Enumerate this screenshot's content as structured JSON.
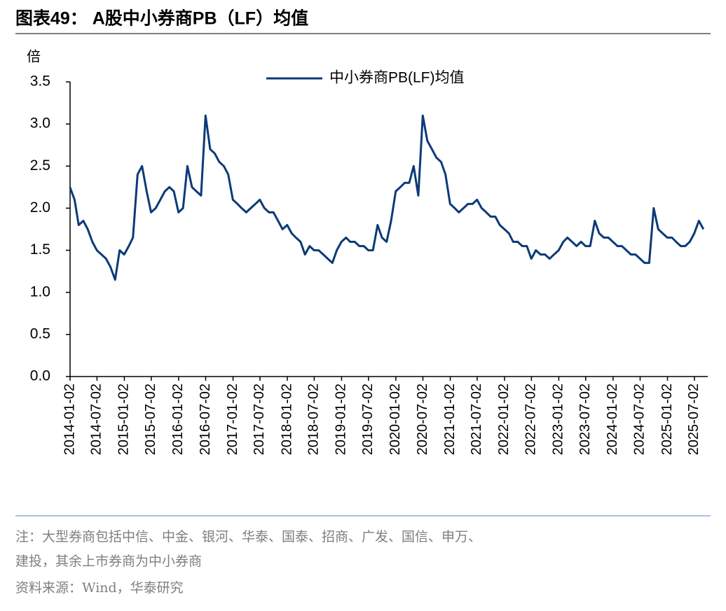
{
  "header": {
    "title": "图表49： A股中小券商PB（LF）均值"
  },
  "chart_data": {
    "type": "line",
    "y_label": "倍",
    "x": [
      "2014-01",
      "2014-02",
      "2014-03",
      "2014-04",
      "2014-05",
      "2014-06",
      "2014-07",
      "2014-08",
      "2014-09",
      "2014-10",
      "2014-11",
      "2014-12",
      "2015-01",
      "2015-02",
      "2015-03",
      "2015-04",
      "2015-05",
      "2015-06",
      "2015-07",
      "2015-08",
      "2015-09",
      "2015-10",
      "2015-11",
      "2015-12",
      "2016-01",
      "2016-02",
      "2016-03",
      "2016-04",
      "2016-05",
      "2016-06",
      "2016-07",
      "2016-08",
      "2016-09",
      "2016-10",
      "2016-11",
      "2016-12",
      "2017-01",
      "2017-02",
      "2017-03",
      "2017-04",
      "2017-05",
      "2017-06",
      "2017-07",
      "2017-08",
      "2017-09",
      "2017-10",
      "2017-11",
      "2017-12",
      "2018-01",
      "2018-02",
      "2018-03",
      "2018-04",
      "2018-05",
      "2018-06",
      "2018-07",
      "2018-08",
      "2018-09",
      "2018-10",
      "2018-11",
      "2018-12",
      "2019-01",
      "2019-02",
      "2019-03",
      "2019-04",
      "2019-05",
      "2019-06",
      "2019-07",
      "2019-08",
      "2019-09",
      "2019-10",
      "2019-11",
      "2019-12",
      "2020-01",
      "2020-02",
      "2020-03",
      "2020-04",
      "2020-05",
      "2020-06",
      "2020-07",
      "2020-08",
      "2020-09",
      "2020-10",
      "2020-11",
      "2020-12",
      "2021-01",
      "2021-02",
      "2021-03",
      "2021-04",
      "2021-05",
      "2021-06",
      "2021-07",
      "2021-08",
      "2021-09",
      "2021-10",
      "2021-11",
      "2021-12",
      "2022-01",
      "2022-02",
      "2022-03",
      "2022-04",
      "2022-05",
      "2022-06",
      "2022-07",
      "2022-08",
      "2022-09",
      "2022-10",
      "2022-11",
      "2022-12",
      "2023-01",
      "2023-02",
      "2023-03",
      "2023-04",
      "2023-05",
      "2023-06",
      "2023-07",
      "2023-08",
      "2023-09",
      "2023-10",
      "2023-11",
      "2023-12",
      "2024-01",
      "2024-02",
      "2024-03",
      "2024-04",
      "2024-05",
      "2024-06",
      "2024-07",
      "2024-08",
      "2024-09",
      "2024-10",
      "2024-11",
      "2024-12",
      "2025-01",
      "2025-02",
      "2025-03",
      "2025-04",
      "2025-05",
      "2025-06",
      "2025-07",
      "2025-08",
      "2025-09"
    ],
    "series": [
      {
        "name": "中小券商PB(LF)均值",
        "color": "#0c3a78",
        "values": [
          2.25,
          2.1,
          1.8,
          1.85,
          1.75,
          1.6,
          1.5,
          1.45,
          1.4,
          1.3,
          1.15,
          1.5,
          1.45,
          1.55,
          1.65,
          2.4,
          2.5,
          2.2,
          1.95,
          2.0,
          2.1,
          2.2,
          2.25,
          2.2,
          1.95,
          2.0,
          2.5,
          2.25,
          2.2,
          2.15,
          3.1,
          2.7,
          2.65,
          2.55,
          2.5,
          2.4,
          2.1,
          2.05,
          2.0,
          1.95,
          2.0,
          2.05,
          2.1,
          2.0,
          1.95,
          1.95,
          1.85,
          1.75,
          1.8,
          1.7,
          1.65,
          1.6,
          1.45,
          1.55,
          1.5,
          1.5,
          1.45,
          1.4,
          1.35,
          1.5,
          1.6,
          1.65,
          1.6,
          1.6,
          1.55,
          1.55,
          1.5,
          1.5,
          1.8,
          1.65,
          1.6,
          1.85,
          2.2,
          2.25,
          2.3,
          2.3,
          2.5,
          2.15,
          3.1,
          2.8,
          2.7,
          2.6,
          2.55,
          2.4,
          2.05,
          2.0,
          1.95,
          2.0,
          2.05,
          2.05,
          2.1,
          2.0,
          1.95,
          1.9,
          1.9,
          1.8,
          1.75,
          1.7,
          1.6,
          1.6,
          1.55,
          1.55,
          1.4,
          1.5,
          1.45,
          1.45,
          1.4,
          1.45,
          1.5,
          1.6,
          1.65,
          1.6,
          1.55,
          1.6,
          1.55,
          1.55,
          1.85,
          1.7,
          1.65,
          1.65,
          1.6,
          1.55,
          1.55,
          1.5,
          1.45,
          1.45,
          1.4,
          1.35,
          1.35,
          2.0,
          1.75,
          1.7,
          1.65,
          1.65,
          1.6,
          1.55,
          1.55,
          1.6,
          1.7,
          1.85,
          1.75
        ]
      }
    ],
    "xlim": [
      "2014-01-02",
      "2025-09-30"
    ],
    "xticks": [
      "2014-01-02",
      "2014-07-02",
      "2015-01-02",
      "2015-07-02",
      "2016-01-02",
      "2016-07-02",
      "2017-01-02",
      "2017-07-02",
      "2018-01-02",
      "2018-07-02",
      "2019-01-02",
      "2019-07-02",
      "2020-01-02",
      "2020-07-02",
      "2021-01-02",
      "2021-07-02",
      "2022-01-02",
      "2022-07-02",
      "2023-01-02",
      "2023-07-02",
      "2024-01-02",
      "2024-07-02",
      "2025-01-02",
      "2025-07-02"
    ],
    "ylim": [
      0,
      3.5
    ],
    "yticks": [
      {
        "value": 0,
        "label": "0.0"
      },
      0.5,
      {
        "value": 1,
        "label": "1.0"
      },
      1.5,
      {
        "value": 2,
        "label": "2.0"
      },
      2.5,
      {
        "value": 3,
        "label": "3.0"
      },
      3.5
    ],
    "legend": "top"
  },
  "notes": [
    "注：大型券商包括中信、中金、银河、华泰、国泰、招商、广发、国信、申万、",
    "建投，其余上市券商为中小券商"
  ],
  "source": "资料来源：Wind，华泰研究"
}
